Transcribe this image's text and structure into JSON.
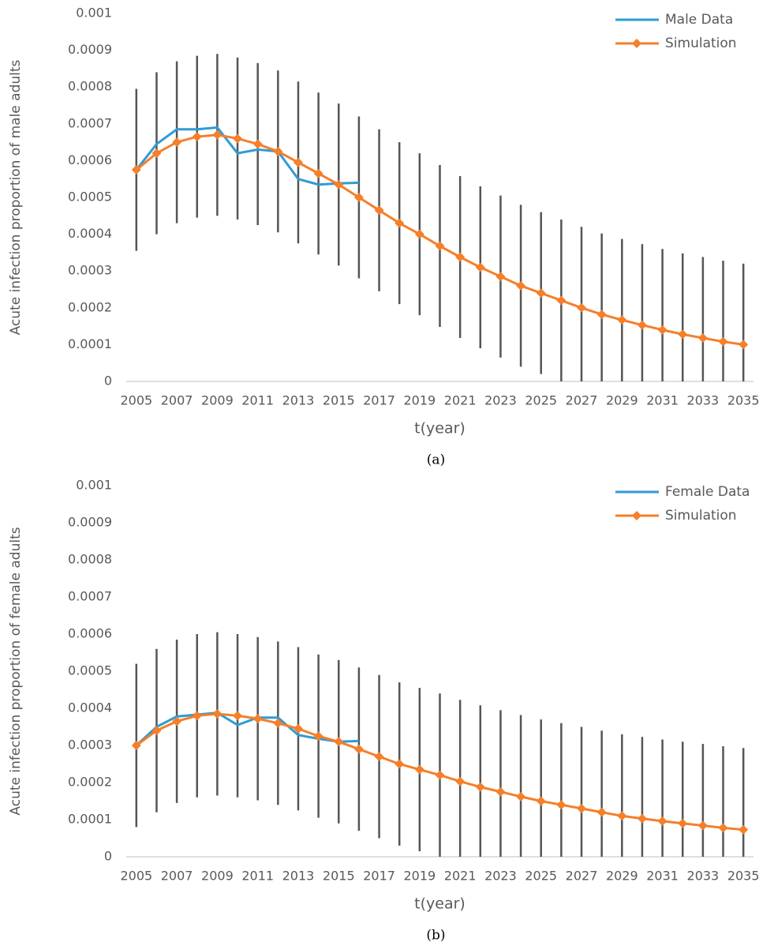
{
  "chart_data": [
    {
      "type": "line",
      "caption": "(a)",
      "y_label": "Acute infection proportion of male adults",
      "x_label": "t(year)",
      "categories": [
        2005,
        null,
        2007,
        null,
        2009,
        null,
        2011,
        null,
        2013,
        null,
        2015,
        null,
        2017,
        null,
        2019,
        null,
        2021,
        null,
        2023,
        null,
        2025,
        null,
        2027,
        null,
        2029,
        null,
        2031,
        null,
        2033,
        null,
        2035
      ],
      "ylim": [
        0,
        0.001
      ],
      "yticks": [
        0,
        0.0001,
        0.0002,
        0.0003,
        0.0004,
        0.0005,
        0.0006,
        0.0007,
        0.0008,
        0.0009,
        0.001
      ],
      "grid": false,
      "legend": "top-right",
      "series": [
        {
          "name": "Male Data",
          "color": "#2e9bd6",
          "marker": "none",
          "values": [
            0.000575,
            0.000645,
            0.000685,
            0.000685,
            0.00069,
            0.00062,
            0.00063,
            0.000625,
            0.00055,
            0.000535,
            0.000538,
            0.00054,
            null,
            null,
            null,
            null,
            null,
            null,
            null,
            null,
            null,
            null,
            null,
            null,
            null,
            null,
            null,
            null,
            null,
            null,
            null
          ]
        },
        {
          "name": "Simulation",
          "color": "#f57f2a",
          "marker": "diamond",
          "error_color": "#555555",
          "values": [
            0.000575,
            0.00062,
            0.00065,
            0.000665,
            0.00067,
            0.00066,
            0.000645,
            0.000625,
            0.000595,
            0.000565,
            0.000535,
            0.0005,
            0.000465,
            0.00043,
            0.0004,
            0.000368,
            0.000338,
            0.00031,
            0.000285,
            0.00026,
            0.00024,
            0.00022,
            0.0002,
            0.000182,
            0.000167,
            0.000153,
            0.00014,
            0.000128,
            0.000118,
            0.000108,
            0.0001
          ],
          "errors": [
            0.00022,
            0.00022,
            0.00022,
            0.00022,
            0.00022,
            0.00022,
            0.00022,
            0.00022,
            0.00022,
            0.00022,
            0.00022,
            0.00022,
            0.00022,
            0.00022,
            0.00022,
            0.00022,
            0.00022,
            0.00022,
            0.00022,
            0.00022,
            0.00022,
            0.00022,
            0.00022,
            0.00022,
            0.00022,
            0.00022,
            0.00022,
            0.00022,
            0.00022,
            0.00022,
            0.00022
          ]
        }
      ]
    },
    {
      "type": "line",
      "caption": "(b)",
      "y_label": "Acute infection proportion of female adults",
      "x_label": "t(year)",
      "categories": [
        2005,
        null,
        2007,
        null,
        2009,
        null,
        2011,
        null,
        2013,
        null,
        2015,
        null,
        2017,
        null,
        2019,
        null,
        2021,
        null,
        2023,
        null,
        2025,
        null,
        2027,
        null,
        2029,
        null,
        2031,
        null,
        2033,
        null,
        2035
      ],
      "ylim": [
        0,
        0.001
      ],
      "yticks": [
        0,
        0.0001,
        0.0002,
        0.0003,
        0.0004,
        0.0005,
        0.0006,
        0.0007,
        0.0008,
        0.0009,
        0.001
      ],
      "grid": false,
      "legend": "top-right",
      "series": [
        {
          "name": "Female Data",
          "color": "#2e9bd6",
          "marker": "none",
          "values": [
            0.0003,
            0.00035,
            0.000378,
            0.000383,
            0.000388,
            0.000355,
            0.000375,
            0.000375,
            0.000328,
            0.000318,
            0.00031,
            0.000312,
            null,
            null,
            null,
            null,
            null,
            null,
            null,
            null,
            null,
            null,
            null,
            null,
            null,
            null,
            null,
            null,
            null,
            null,
            null
          ]
        },
        {
          "name": "Simulation",
          "color": "#f57f2a",
          "marker": "diamond",
          "error_color": "#555555",
          "values": [
            0.0003,
            0.00034,
            0.000365,
            0.00038,
            0.000385,
            0.00038,
            0.000372,
            0.00036,
            0.000345,
            0.000325,
            0.00031,
            0.00029,
            0.00027,
            0.00025,
            0.000235,
            0.00022,
            0.000203,
            0.000188,
            0.000175,
            0.000162,
            0.00015,
            0.00014,
            0.00013,
            0.00012,
            0.00011,
            0.000103,
            9.6e-05,
            9e-05,
            8.4e-05,
            7.8e-05,
            7.3e-05
          ],
          "errors": [
            0.00022,
            0.00022,
            0.00022,
            0.00022,
            0.00022,
            0.00022,
            0.00022,
            0.00022,
            0.00022,
            0.00022,
            0.00022,
            0.00022,
            0.00022,
            0.00022,
            0.00022,
            0.00022,
            0.00022,
            0.00022,
            0.00022,
            0.00022,
            0.00022,
            0.00022,
            0.00022,
            0.00022,
            0.00022,
            0.00022,
            0.00022,
            0.00022,
            0.00022,
            0.00022,
            0.00022
          ]
        }
      ]
    }
  ]
}
